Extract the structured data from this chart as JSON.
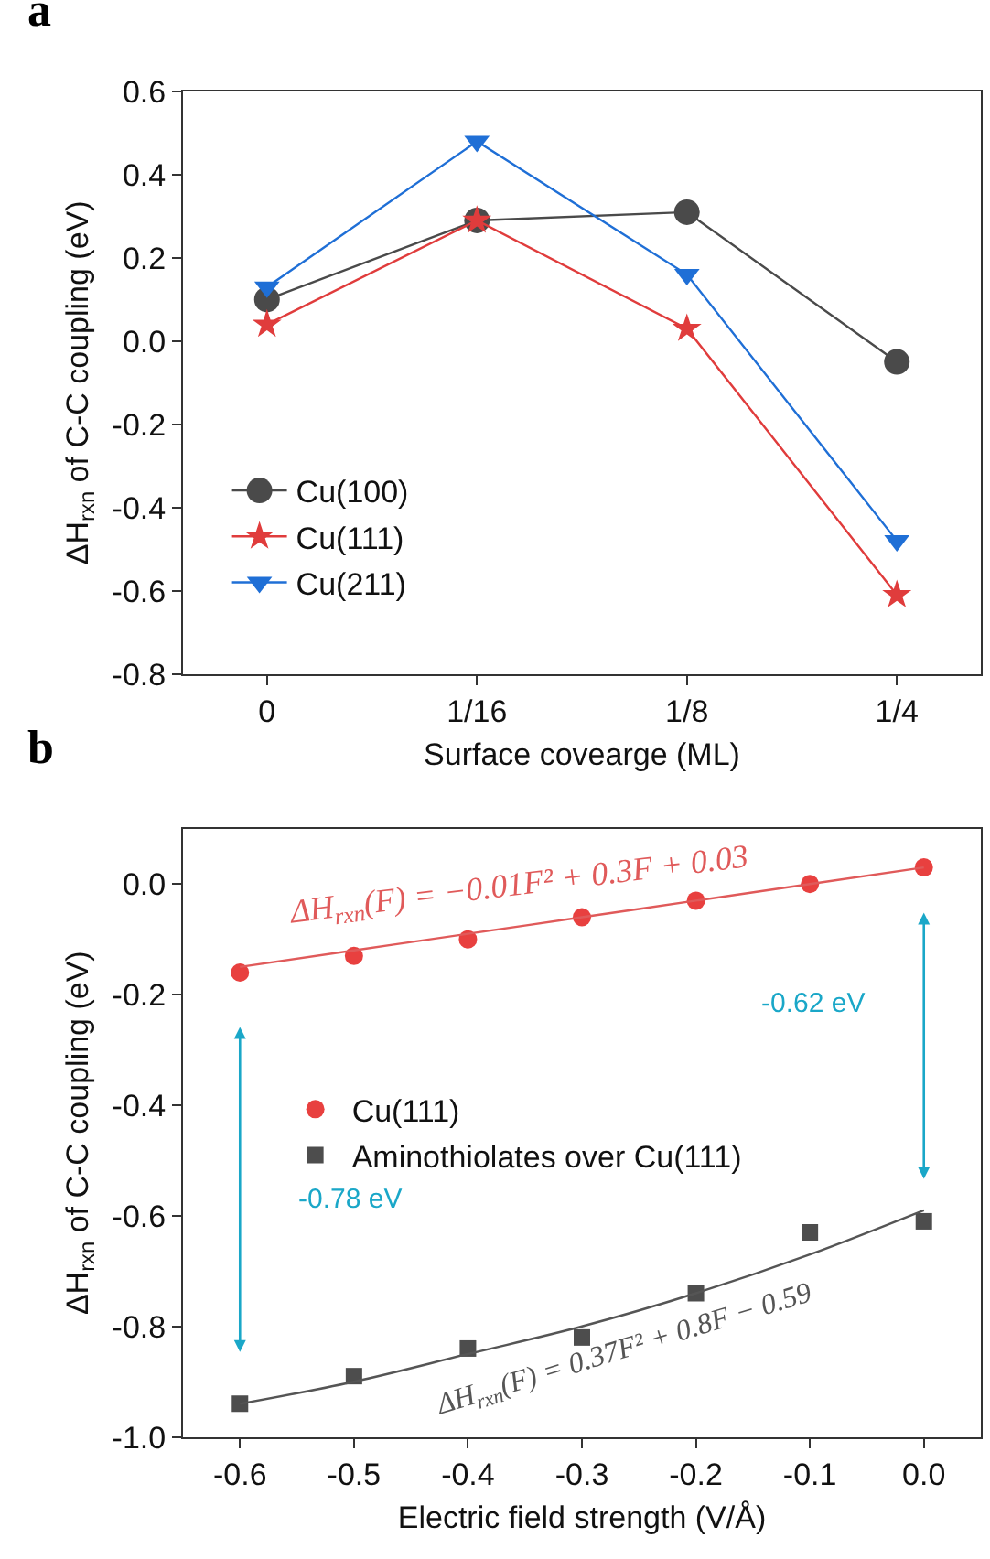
{
  "chart_data": [
    {
      "type": "line",
      "title": "a",
      "xlabel": "Surface covearge (ML)",
      "ylabel": "ΔH$_{rxn}$ of C-C coupling (eV)",
      "categories": [
        "0",
        "1/16",
        "1/8",
        "1/4"
      ],
      "ylim": [
        -0.8,
        0.6
      ],
      "yticks": [
        {
          "value": -0.8,
          "label": "-0.8"
        },
        {
          "value": -0.6,
          "label": "-0.6"
        },
        {
          "value": -0.4,
          "label": "-0.4"
        },
        {
          "value": -0.2,
          "label": "-0.2"
        },
        {
          "value": 0,
          "label": "0.0"
        },
        {
          "value": 0.2,
          "label": "0.2"
        },
        {
          "value": 0.4,
          "label": "0.4"
        },
        {
          "value": 0.6,
          "label": "0.6"
        }
      ],
      "legend": "bottom left",
      "series": [
        {
          "name": "Cu(100)",
          "color": "#4a4a4a",
          "marker": "circle",
          "values": [
            0.1,
            0.29,
            0.31,
            -0.05
          ]
        },
        {
          "name": "Cu(111)",
          "color": "#e03c3c",
          "marker": "star",
          "values": [
            0.04,
            0.29,
            0.03,
            -0.61
          ]
        },
        {
          "name": "Cu(211)",
          "color": "#1f6fd6",
          "marker": "triangle",
          "values": [
            0.13,
            0.48,
            0.16,
            -0.48
          ]
        }
      ]
    },
    {
      "type": "scatter",
      "title": "b",
      "xlabel": "Electric field strength (V/Å)",
      "ylabel": "ΔH$_{rxn}$ of C-C coupling (eV)",
      "x": [
        -0.6,
        -0.5,
        -0.4,
        -0.3,
        -0.2,
        -0.1,
        0.0
      ],
      "xlim": [
        -0.65,
        0.05
      ],
      "xticks": [
        {
          "value": -0.6,
          "label": "-0.6"
        },
        {
          "value": -0.5,
          "label": "-0.5"
        },
        {
          "value": -0.4,
          "label": "-0.4"
        },
        {
          "value": -0.3,
          "label": "-0.3"
        },
        {
          "value": -0.2,
          "label": "-0.2"
        },
        {
          "value": -0.1,
          "label": "-0.1"
        },
        {
          "value": 0,
          "label": "0.0"
        }
      ],
      "ylim": [
        -1.0,
        0.1
      ],
      "yticks": [
        {
          "value": -1.0,
          "label": "-1.0"
        },
        {
          "value": -0.8,
          "label": "-0.8"
        },
        {
          "value": -0.6,
          "label": "-0.6"
        },
        {
          "value": -0.4,
          "label": "-0.4"
        },
        {
          "value": -0.2,
          "label": "-0.2"
        },
        {
          "value": 0,
          "label": "0.0"
        }
      ],
      "legend": "left",
      "series": [
        {
          "name": "Cu(111)",
          "color": "#e8403f",
          "marker": "circle",
          "values": [
            -0.16,
            -0.13,
            -0.1,
            -0.06,
            -0.03,
            0.0,
            0.03
          ]
        },
        {
          "name": "Aminothiolates over Cu(111)",
          "color": "#4d4d4d",
          "marker": "square",
          "values": [
            -0.94,
            -0.89,
            -0.84,
            -0.82,
            -0.74,
            -0.63,
            -0.61
          ]
        },
        {
          "type": "line",
          "color": "#e05a5a",
          "marker": "none",
          "values": [
            -0.15,
            -0.12,
            -0.09,
            -0.06,
            -0.03,
            0.0,
            0.03
          ]
        },
        {
          "type": "line",
          "color": "#555555",
          "marker": "none",
          "values": [
            -0.94,
            -0.9,
            -0.85,
            -0.8,
            -0.74,
            -0.67,
            -0.59
          ]
        }
      ],
      "annotations": [
        "ΔH$_{rxn}$(F) = −0.01F² + 0.3F + 0.03",
        "ΔH$_{rxn}$(F) = 0.37F² + 0.8F − 0.59",
        "-0.78 eV",
        "-0.62 eV"
      ]
    }
  ]
}
